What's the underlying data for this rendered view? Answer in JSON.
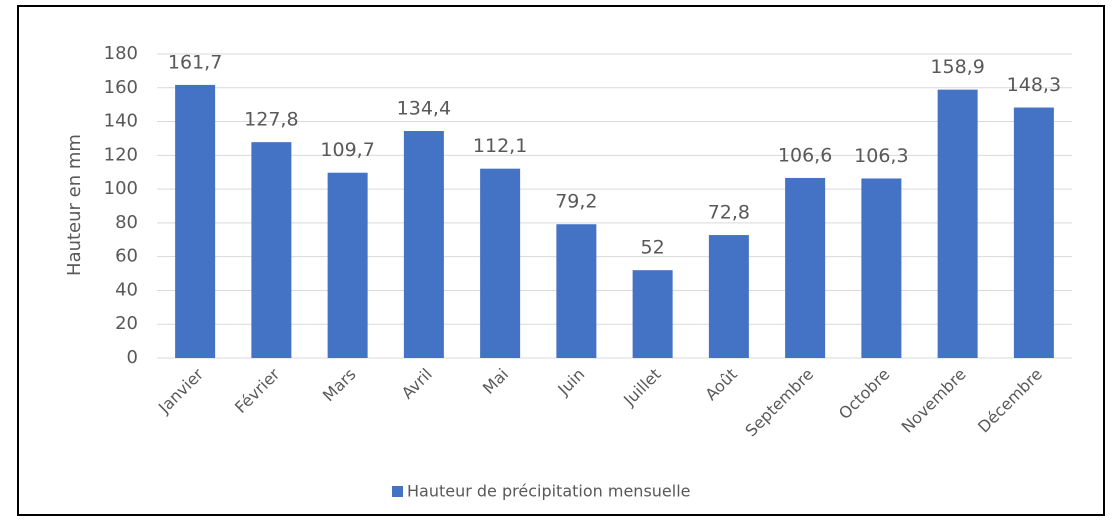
{
  "chart_data": {
    "type": "bar",
    "y_label": "Hauteur en mm",
    "categories": [
      "Janvier",
      "Février",
      "Mars",
      "Avril",
      "Mai",
      "Juin",
      "Juillet",
      "Août",
      "Septembre",
      "Octobre",
      "Novembre",
      "Décembre"
    ],
    "series": [
      {
        "name": "Hauteur de précipitation mensuelle",
        "color": "#4472c4",
        "values": [
          161.7,
          127.8,
          109.7,
          134.4,
          112.1,
          79.2,
          52,
          72.8,
          106.6,
          106.3,
          158.9,
          148.3
        ],
        "value_labels": [
          "161,7",
          "127,8",
          "109,7",
          "134,4",
          "112,1",
          "79,2",
          "52",
          "72,8",
          "106,6",
          "106,3",
          "158,9",
          "148,3"
        ]
      }
    ],
    "ylim": [
      0,
      180
    ],
    "yticks": [
      0,
      20,
      40,
      60,
      80,
      100,
      120,
      140,
      160,
      180
    ],
    "grid": true,
    "legend": "bottom"
  }
}
